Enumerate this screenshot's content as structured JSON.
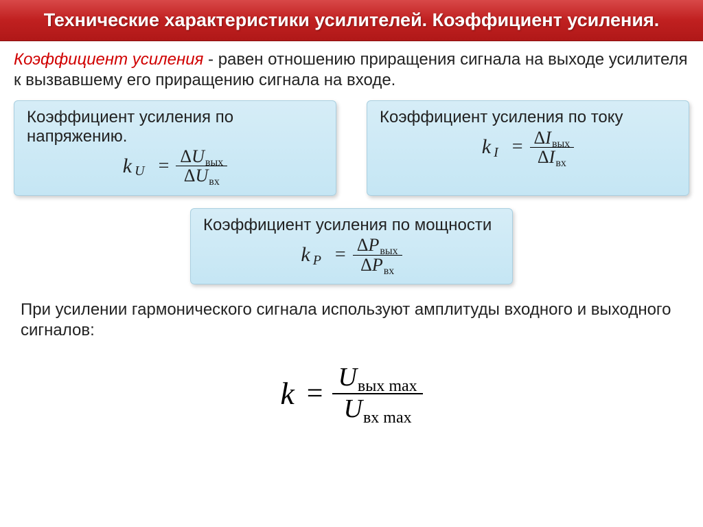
{
  "header": {
    "title": "Технические характеристики усилителей. Коэффициент усиления."
  },
  "definition": {
    "term": "Коэффициент усиления",
    "text": " - равен отношению  приращения сигнала на выходе усилителя к вызвавшему его приращению сигнала на входе."
  },
  "boxes": {
    "voltage": {
      "title": "Коэффициент усиления по напряжению.",
      "k_symbol": "k",
      "k_sub": "U",
      "delta": "Δ",
      "qty": "U",
      "sub_out": "вых",
      "sub_in": "вх"
    },
    "current": {
      "title": "Коэффициент усиления по току",
      "k_symbol": "k",
      "k_sub": "I",
      "delta": "Δ",
      "qty": "I",
      "sub_out": "вых",
      "sub_in": "вх"
    },
    "power": {
      "title": "Коэффициент усиления по мощности",
      "k_symbol": "k",
      "k_sub": "P",
      "delta": "Δ",
      "qty": "P",
      "sub_out": "вых",
      "sub_in": "вх"
    }
  },
  "harmonic_note": "При усилении гармонического сигнала используют амплитуды входного и выходного сигналов:",
  "big_formula": {
    "k_symbol": "k",
    "qty": "U",
    "sub_out": "вых max",
    "sub_in": "вх max"
  },
  "equals": "="
}
